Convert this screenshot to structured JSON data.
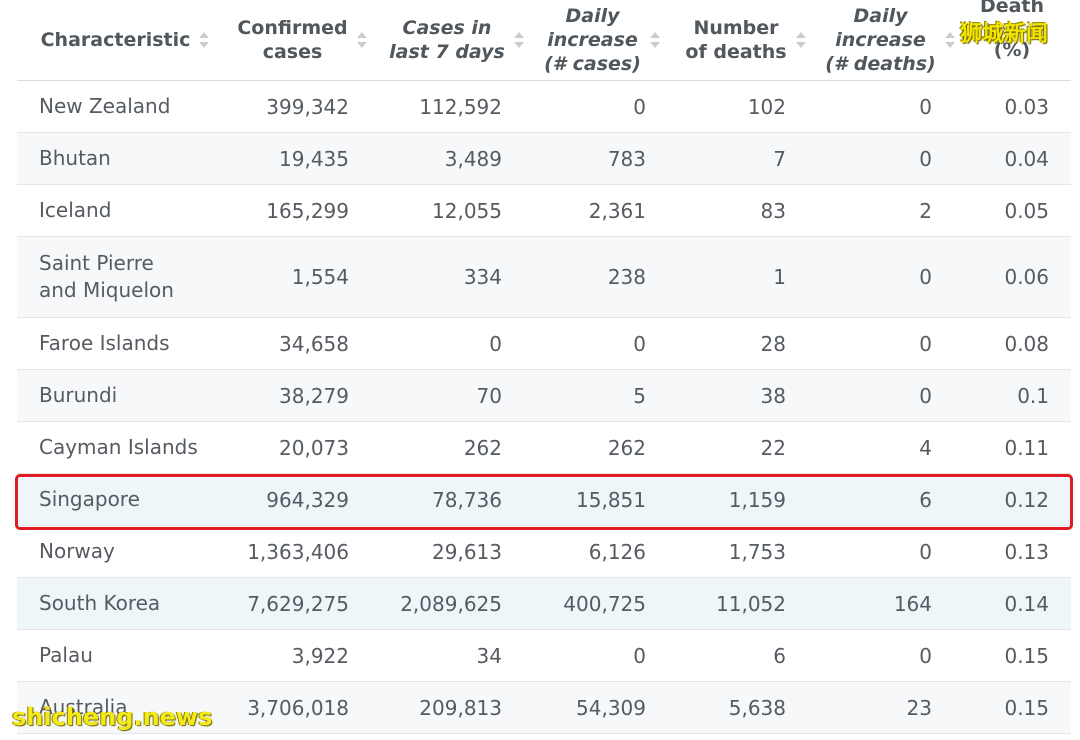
{
  "headers": {
    "characteristic": [
      "Characteristic"
    ],
    "confirmed": [
      "Confirmed",
      "cases"
    ],
    "last7": [
      "Cases in",
      "last 7 days"
    ],
    "daily_cases": [
      "Daily",
      "increase",
      "(# cases)"
    ],
    "deaths": [
      "Number",
      "of deaths"
    ],
    "daily_deaths": [
      "Daily",
      "increase",
      "(# deaths)"
    ],
    "death_rate": [
      "Death",
      "(%)"
    ]
  },
  "rows": [
    {
      "name": "New Zealand",
      "confirmed": "399,342",
      "last7": "112,592",
      "daily_cases": "0",
      "deaths": "102",
      "daily_deaths": "0",
      "death_rate": "0.03"
    },
    {
      "name": "Bhutan",
      "confirmed": "19,435",
      "last7": "3,489",
      "daily_cases": "783",
      "deaths": "7",
      "daily_deaths": "0",
      "death_rate": "0.04"
    },
    {
      "name": "Iceland",
      "confirmed": "165,299",
      "last7": "12,055",
      "daily_cases": "2,361",
      "deaths": "83",
      "daily_deaths": "2",
      "death_rate": "0.05"
    },
    {
      "name": "Saint Pierre and Miquelon",
      "confirmed": "1,554",
      "last7": "334",
      "daily_cases": "238",
      "deaths": "1",
      "daily_deaths": "0",
      "death_rate": "0.06"
    },
    {
      "name": "Faroe Islands",
      "confirmed": "34,658",
      "last7": "0",
      "daily_cases": "0",
      "deaths": "28",
      "daily_deaths": "0",
      "death_rate": "0.08"
    },
    {
      "name": "Burundi",
      "confirmed": "38,279",
      "last7": "70",
      "daily_cases": "5",
      "deaths": "38",
      "daily_deaths": "0",
      "death_rate": "0.1"
    },
    {
      "name": "Cayman Islands",
      "confirmed": "20,073",
      "last7": "262",
      "daily_cases": "262",
      "deaths": "22",
      "daily_deaths": "4",
      "death_rate": "0.11"
    },
    {
      "name": "Singapore",
      "confirmed": "964,329",
      "last7": "78,736",
      "daily_cases": "15,851",
      "deaths": "1,159",
      "daily_deaths": "6",
      "death_rate": "0.12"
    },
    {
      "name": "Norway",
      "confirmed": "1,363,406",
      "last7": "29,613",
      "daily_cases": "6,126",
      "deaths": "1,753",
      "daily_deaths": "0",
      "death_rate": "0.13"
    },
    {
      "name": "South Korea",
      "confirmed": "7,629,275",
      "last7": "2,089,625",
      "daily_cases": "400,725",
      "deaths": "11,052",
      "daily_deaths": "164",
      "death_rate": "0.14"
    },
    {
      "name": "Palau",
      "confirmed": "3,922",
      "last7": "34",
      "daily_cases": "0",
      "deaths": "6",
      "daily_deaths": "0",
      "death_rate": "0.15"
    },
    {
      "name": "Australia",
      "confirmed": "3,706,018",
      "last7": "209,813",
      "daily_cases": "54,309",
      "deaths": "5,638",
      "daily_deaths": "23",
      "death_rate": "0.15"
    }
  ],
  "watermarks": {
    "top": "狮城新闻",
    "bottom": "shicheng.news"
  },
  "colors": {
    "highlight_border": "#e01b24",
    "row_alt": "#f7f8f9",
    "row_highlight_blue": "#eef6fa",
    "watermark": "#f4ea1a"
  }
}
